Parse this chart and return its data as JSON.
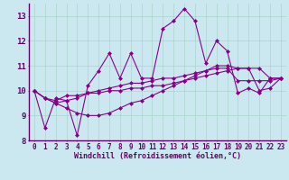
{
  "xlabel": "Windchill (Refroidissement éolien,°C)",
  "background_color": "#cbe8f0",
  "grid_color": "#aad4cc",
  "line_color": "#880088",
  "border_color": "#660066",
  "xlim": [
    -0.5,
    23.5
  ],
  "ylim": [
    8.0,
    13.5
  ],
  "xticks": [
    0,
    1,
    2,
    3,
    4,
    5,
    6,
    7,
    8,
    9,
    10,
    11,
    12,
    13,
    14,
    15,
    16,
    17,
    18,
    19,
    20,
    21,
    22,
    23
  ],
  "yticks": [
    8,
    9,
    10,
    11,
    12,
    13
  ],
  "series": [
    [
      10.0,
      8.5,
      9.7,
      9.6,
      8.2,
      10.2,
      10.8,
      11.5,
      10.5,
      11.5,
      10.5,
      10.5,
      12.5,
      12.8,
      13.3,
      12.8,
      11.1,
      12.0,
      11.6,
      9.9,
      10.1,
      9.9,
      10.5,
      10.5
    ],
    [
      10.0,
      9.7,
      9.6,
      9.8,
      9.8,
      9.9,
      9.9,
      10.0,
      10.0,
      10.1,
      10.1,
      10.2,
      10.2,
      10.3,
      10.4,
      10.5,
      10.6,
      10.7,
      10.8,
      10.9,
      10.9,
      10.0,
      10.1,
      10.5
    ],
    [
      10.0,
      9.7,
      9.5,
      9.3,
      9.1,
      9.0,
      9.0,
      9.1,
      9.3,
      9.5,
      9.6,
      9.8,
      10.0,
      10.2,
      10.4,
      10.6,
      10.8,
      11.0,
      11.0,
      10.9,
      10.9,
      10.9,
      10.5,
      10.5
    ],
    [
      10.0,
      9.7,
      9.5,
      9.6,
      9.7,
      9.9,
      10.0,
      10.1,
      10.2,
      10.3,
      10.3,
      10.4,
      10.5,
      10.5,
      10.6,
      10.7,
      10.8,
      10.9,
      10.9,
      10.4,
      10.4,
      10.4,
      10.4,
      10.5
    ]
  ],
  "marker": "D",
  "marker_size": 2.0,
  "linewidth": 0.8,
  "tick_fontsize": 5.5,
  "xlabel_fontsize": 6.0
}
